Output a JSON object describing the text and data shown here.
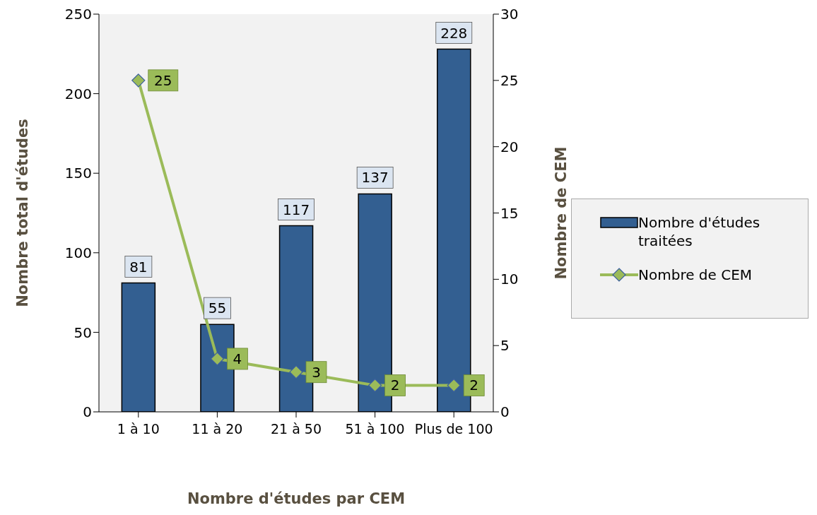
{
  "chart_data": {
    "type": "bar",
    "categories": [
      "1 à 10",
      "11 à 20",
      "21 à 50",
      "51 à 100",
      "Plus de 100"
    ],
    "series": [
      {
        "name": "Nombre d'études traitées",
        "color": "#335f91",
        "values": [
          81,
          55,
          117,
          137,
          228
        ]
      },
      {
        "name": "Nombre de CEM",
        "type": "line",
        "axis": "y2",
        "color": "#9bbb59",
        "marker": "diamond",
        "values": [
          25,
          4,
          3,
          2,
          2
        ]
      }
    ],
    "xlabel": "Nombre d'études par CEM",
    "ylabel": "Nombre total d'études",
    "y2label": "Nombre de CEM",
    "ylim": [
      0,
      250
    ],
    "yticks": [
      0,
      50,
      100,
      150,
      200,
      250
    ],
    "y2lim": [
      0,
      30
    ],
    "y2ticks": [
      0,
      5,
      10,
      15,
      20,
      25,
      30
    ],
    "data_labels": true,
    "legend": "right",
    "grid": false
  }
}
